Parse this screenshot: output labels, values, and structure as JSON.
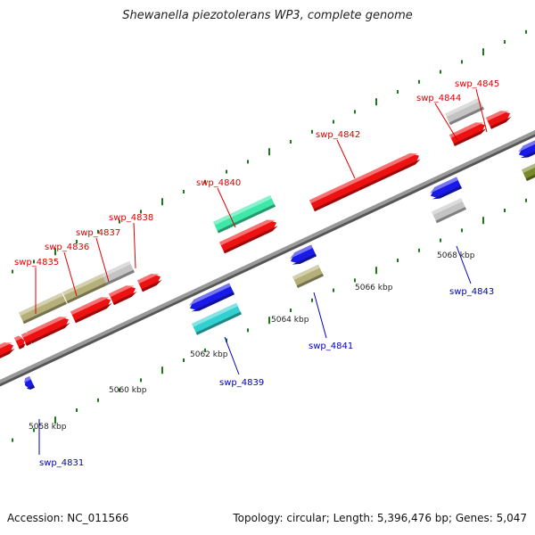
{
  "header": {
    "title": "Shewanella piezotolerans WP3, complete genome"
  },
  "footer": {
    "accession": "Accession: NC_011566",
    "summary": "Topology: circular; Length: 5,396,476 bp; Genes: 5,047"
  },
  "colors": {
    "red": "#ee1111",
    "olive": "#b5b07a",
    "grey": "#c4c4c4",
    "blue": "#1a1ae8",
    "mint": "#3de8a8",
    "cyan": "#33d0d0",
    "dark_olive": "#7a8a2a",
    "label_forward": "#dd0000",
    "label_reverse": "#0000bb",
    "tick": "#1a7a1a",
    "backbone": "#999999"
  },
  "scale_labels": [
    "5058 kbp",
    "5060 kbp",
    "5062 kbp",
    "5064 kbp",
    "5066 kbp",
    "5068 kbp"
  ],
  "forward_labels": [
    "swp_4835",
    "swp_4836",
    "swp_4837",
    "swp_4838",
    "swp_4840",
    "swp_4842",
    "swp_4844",
    "swp_4845"
  ],
  "reverse_labels": [
    "swp_4831",
    "swp_4839",
    "swp_4841",
    "swp_4843"
  ]
}
